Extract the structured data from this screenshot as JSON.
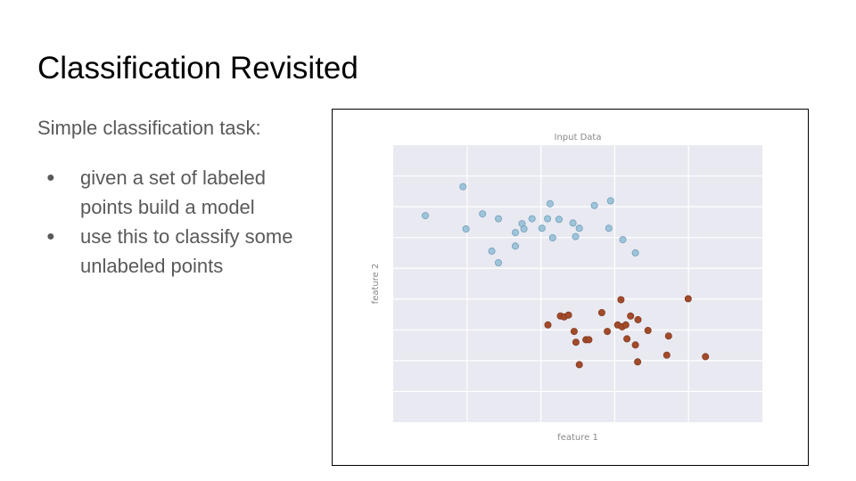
{
  "slide": {
    "title": "Classification Revisited",
    "intro": "Simple classification task:",
    "bullets": [
      "given a set of labeled points build a model",
      "use this to classify some unlabeled points"
    ]
  },
  "chart_data": {
    "type": "scatter",
    "title": "Input Data",
    "xlabel": "feature 1",
    "ylabel": "feature 2",
    "xlim": [
      0,
      10
    ],
    "ylim": [
      0,
      9
    ],
    "grid": true,
    "show_ticks": false,
    "background": "#e9e9f1",
    "series": [
      {
        "color": "#9fc4d9",
        "edge": "#6f9fbd",
        "points": [
          [
            0.87,
            6.71
          ],
          [
            1.89,
            7.65
          ],
          [
            1.97,
            6.28
          ],
          [
            2.42,
            6.77
          ],
          [
            2.67,
            5.56
          ],
          [
            2.85,
            5.18
          ],
          [
            2.85,
            6.61
          ],
          [
            3.31,
            5.72
          ],
          [
            3.31,
            6.16
          ],
          [
            3.49,
            6.45
          ],
          [
            3.54,
            6.28
          ],
          [
            3.76,
            6.61
          ],
          [
            4.03,
            6.3
          ],
          [
            4.18,
            6.61
          ],
          [
            4.25,
            7.1
          ],
          [
            4.32,
            5.99
          ],
          [
            4.49,
            6.59
          ],
          [
            4.87,
            6.47
          ],
          [
            4.94,
            6.03
          ],
          [
            5.04,
            6.3
          ],
          [
            5.45,
            7.04
          ],
          [
            5.84,
            6.3
          ],
          [
            5.89,
            7.19
          ],
          [
            6.22,
            5.93
          ],
          [
            6.56,
            5.5
          ]
        ]
      },
      {
        "color": "#a24b2b",
        "edge": "#823a1f",
        "points": [
          [
            4.19,
            3.16
          ],
          [
            4.53,
            3.45
          ],
          [
            4.63,
            3.42
          ],
          [
            4.75,
            3.48
          ],
          [
            4.9,
            2.95
          ],
          [
            4.95,
            2.6
          ],
          [
            5.04,
            1.87
          ],
          [
            5.22,
            2.68
          ],
          [
            5.3,
            2.68
          ],
          [
            5.65,
            3.56
          ],
          [
            5.8,
            2.95
          ],
          [
            6.08,
            3.16
          ],
          [
            6.17,
            3.98
          ],
          [
            6.2,
            3.1
          ],
          [
            6.3,
            3.16
          ],
          [
            6.33,
            2.71
          ],
          [
            6.43,
            3.45
          ],
          [
            6.56,
            2.51
          ],
          [
            6.62,
            1.96
          ],
          [
            6.63,
            3.33
          ],
          [
            6.9,
            2.98
          ],
          [
            7.41,
            2.18
          ],
          [
            7.46,
            2.8
          ],
          [
            7.99,
            4.01
          ],
          [
            8.46,
            2.13
          ]
        ]
      }
    ]
  }
}
